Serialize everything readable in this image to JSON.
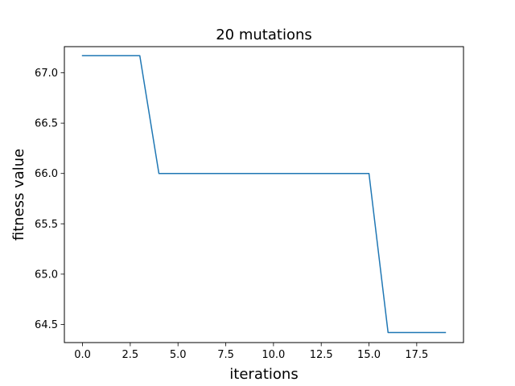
{
  "chart_data": {
    "type": "line",
    "title": "20 mutations",
    "xlabel": "iterations",
    "ylabel": "fitness value",
    "xlim": [
      -0.95,
      19.95
    ],
    "ylim": [
      64.32,
      67.26
    ],
    "xticks": [
      0.0,
      2.5,
      5.0,
      7.5,
      10.0,
      12.5,
      15.0,
      17.5
    ],
    "xtick_labels": [
      "0.0",
      "2.5",
      "5.0",
      "7.5",
      "10.0",
      "12.5",
      "15.0",
      "17.5"
    ],
    "yticks": [
      64.5,
      65.0,
      65.5,
      66.0,
      66.5,
      67.0
    ],
    "ytick_labels": [
      "64.5",
      "65.0",
      "65.5",
      "66.0",
      "66.5",
      "67.0"
    ],
    "grid": false,
    "series": [
      {
        "color": "#1f77b4",
        "x": [
          0,
          1,
          2,
          3,
          4,
          5,
          6,
          7,
          8,
          9,
          10,
          11,
          12,
          13,
          14,
          15,
          16,
          17,
          18,
          19
        ],
        "y": [
          67.17,
          67.17,
          67.17,
          67.17,
          66.0,
          66.0,
          66.0,
          66.0,
          66.0,
          66.0,
          66.0,
          66.0,
          66.0,
          66.0,
          66.0,
          66.0,
          64.42,
          64.42,
          64.42,
          64.42
        ]
      }
    ]
  }
}
